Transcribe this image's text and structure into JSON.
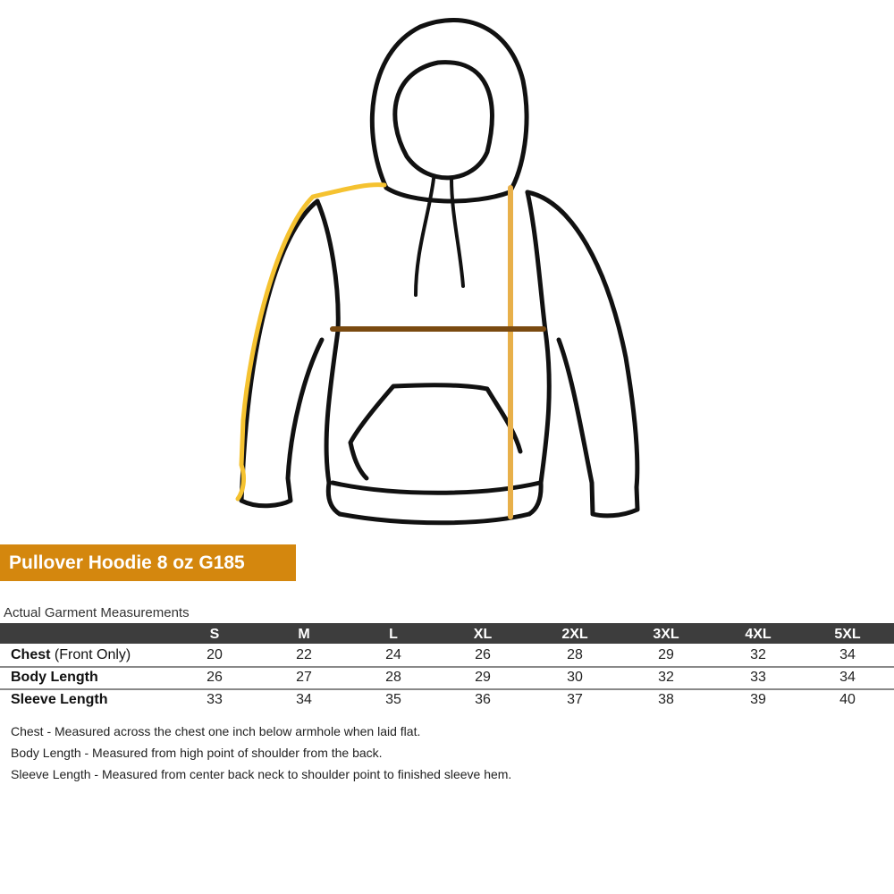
{
  "product_title": "Pullover Hoodie 8 oz G185",
  "table_caption": "Actual Garment Measurements",
  "colors": {
    "banner": "#d4870e",
    "header_bar": "#3d3d3d",
    "sleeve_line": "#f5c230",
    "length_line": "#e8b04a",
    "chest_line": "#7a4a10"
  },
  "illustration": "hoodie-outline",
  "sizes": [
    "S",
    "M",
    "L",
    "XL",
    "2XL",
    "3XL",
    "4XL",
    "5XL"
  ],
  "rows": [
    {
      "label": "Chest",
      "qualifier": "(Front Only)",
      "values": [
        "20",
        "22",
        "24",
        "26",
        "28",
        "29",
        "32",
        "34"
      ]
    },
    {
      "label": "Body Length",
      "qualifier": "",
      "values": [
        "26",
        "27",
        "28",
        "29",
        "30",
        "32",
        "33",
        "34"
      ]
    },
    {
      "label": "Sleeve Length",
      "qualifier": "",
      "values": [
        "33",
        "34",
        "35",
        "36",
        "37",
        "38",
        "39",
        "40"
      ]
    }
  ],
  "notes": [
    "Chest - Measured across the chest one inch below armhole when laid flat.",
    "Body Length - Measured from high point of shoulder from the back.",
    "Sleeve Length - Measured from center back neck to shoulder point to finished sleeve hem."
  ]
}
